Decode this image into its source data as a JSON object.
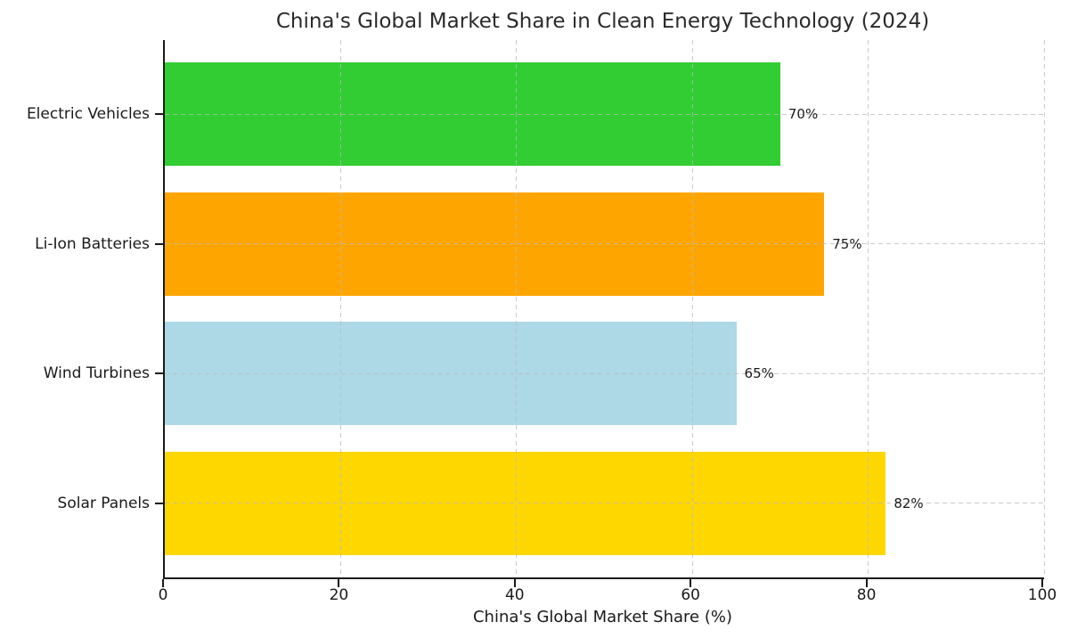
{
  "figure": {
    "background": "#ffffff"
  },
  "chart_data": {
    "type": "bar",
    "orientation": "horizontal",
    "title": "China's Global Market Share in Clean Energy Technology (2024)",
    "categories": [
      "Electric Vehicles",
      "Li-Ion Batteries",
      "Wind Turbines",
      "Solar Panels"
    ],
    "values": [
      70,
      75,
      65,
      82
    ],
    "value_labels": [
      "70%",
      "75%",
      "65%",
      "82%"
    ],
    "bar_colors": [
      "#32CD32",
      "#FFA500",
      "#ADD8E6",
      "#FFD700"
    ],
    "xlabel": "China's Global Market Share (%)",
    "ylabel": "",
    "xlim": [
      0,
      100
    ],
    "xticks": [
      0,
      20,
      40,
      60,
      80,
      100
    ],
    "xtick_labels": [
      "0",
      "20",
      "40",
      "60",
      "80",
      "100"
    ],
    "grid": "dashed",
    "grid_color": "#b9b9b9",
    "axis_color": "#1a1a1a",
    "text_color": "#1a1a1a",
    "legend": "none"
  }
}
